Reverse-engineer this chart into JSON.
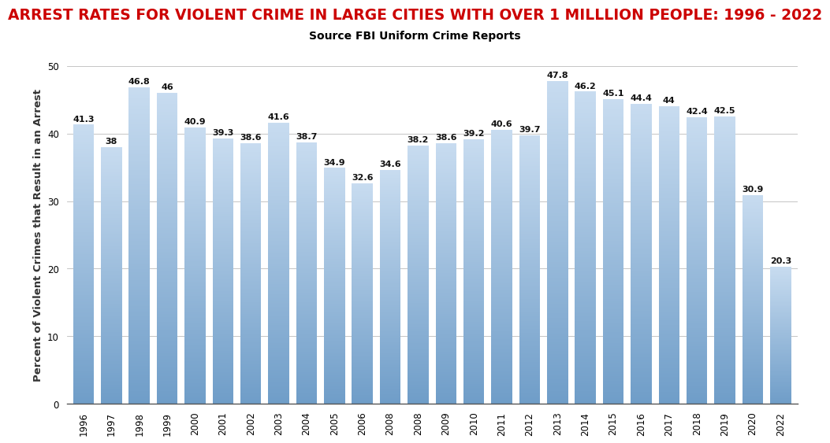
{
  "title": "ARREST RATES FOR VIOLENT CRIME IN LARGE CITIES WITH OVER 1 MILLLION PEOPLE: 1996 - 2022",
  "subtitle": "Source FBI Uniform Crime Reports",
  "ylabel": "Percent of Violent Crimes that Result in an Arrest",
  "x_labels": [
    "1996",
    "1997",
    "1998",
    "1999",
    "2000",
    "2001",
    "2002",
    "2003",
    "2004",
    "2005",
    "2006",
    "2008",
    "2008",
    "2009",
    "2010",
    "2011",
    "2012",
    "2013",
    "2014",
    "2015",
    "2016",
    "2017",
    "2018",
    "2019",
    "2020",
    "2022"
  ],
  "values": [
    41.3,
    38.0,
    46.8,
    46.0,
    40.9,
    39.3,
    38.6,
    41.6,
    38.7,
    34.9,
    32.6,
    34.6,
    38.2,
    38.6,
    39.2,
    40.6,
    39.7,
    47.8,
    46.2,
    45.1,
    44.4,
    44.0,
    42.4,
    42.5,
    30.9,
    20.3
  ],
  "value_labels": [
    "41.3",
    "38",
    "46.8",
    "46",
    "40.9",
    "39.3",
    "38.6",
    "41.6",
    "38.7",
    "34.9",
    "32.6",
    "34.6",
    "38.2",
    "38.6",
    "39.2",
    "40.6",
    "39.7",
    "47.8",
    "46.2",
    "45.1",
    "44.4",
    "44",
    "42.4",
    "42.5",
    "30.9",
    "20.3"
  ],
  "ylim": [
    0,
    50
  ],
  "yticks": [
    0,
    10,
    20,
    30,
    40,
    50
  ],
  "bar_color_top": "#6F9DC8",
  "bar_color_bottom": "#C8DCF0",
  "title_color": "#CC0000",
  "subtitle_color": "#000000",
  "label_color": "#111111",
  "background_color": "#FFFFFF",
  "title_fontsize": 13.5,
  "subtitle_fontsize": 10,
  "ylabel_fontsize": 9.5,
  "value_fontsize": 8,
  "tick_fontsize": 8.5,
  "bar_width": 0.75
}
